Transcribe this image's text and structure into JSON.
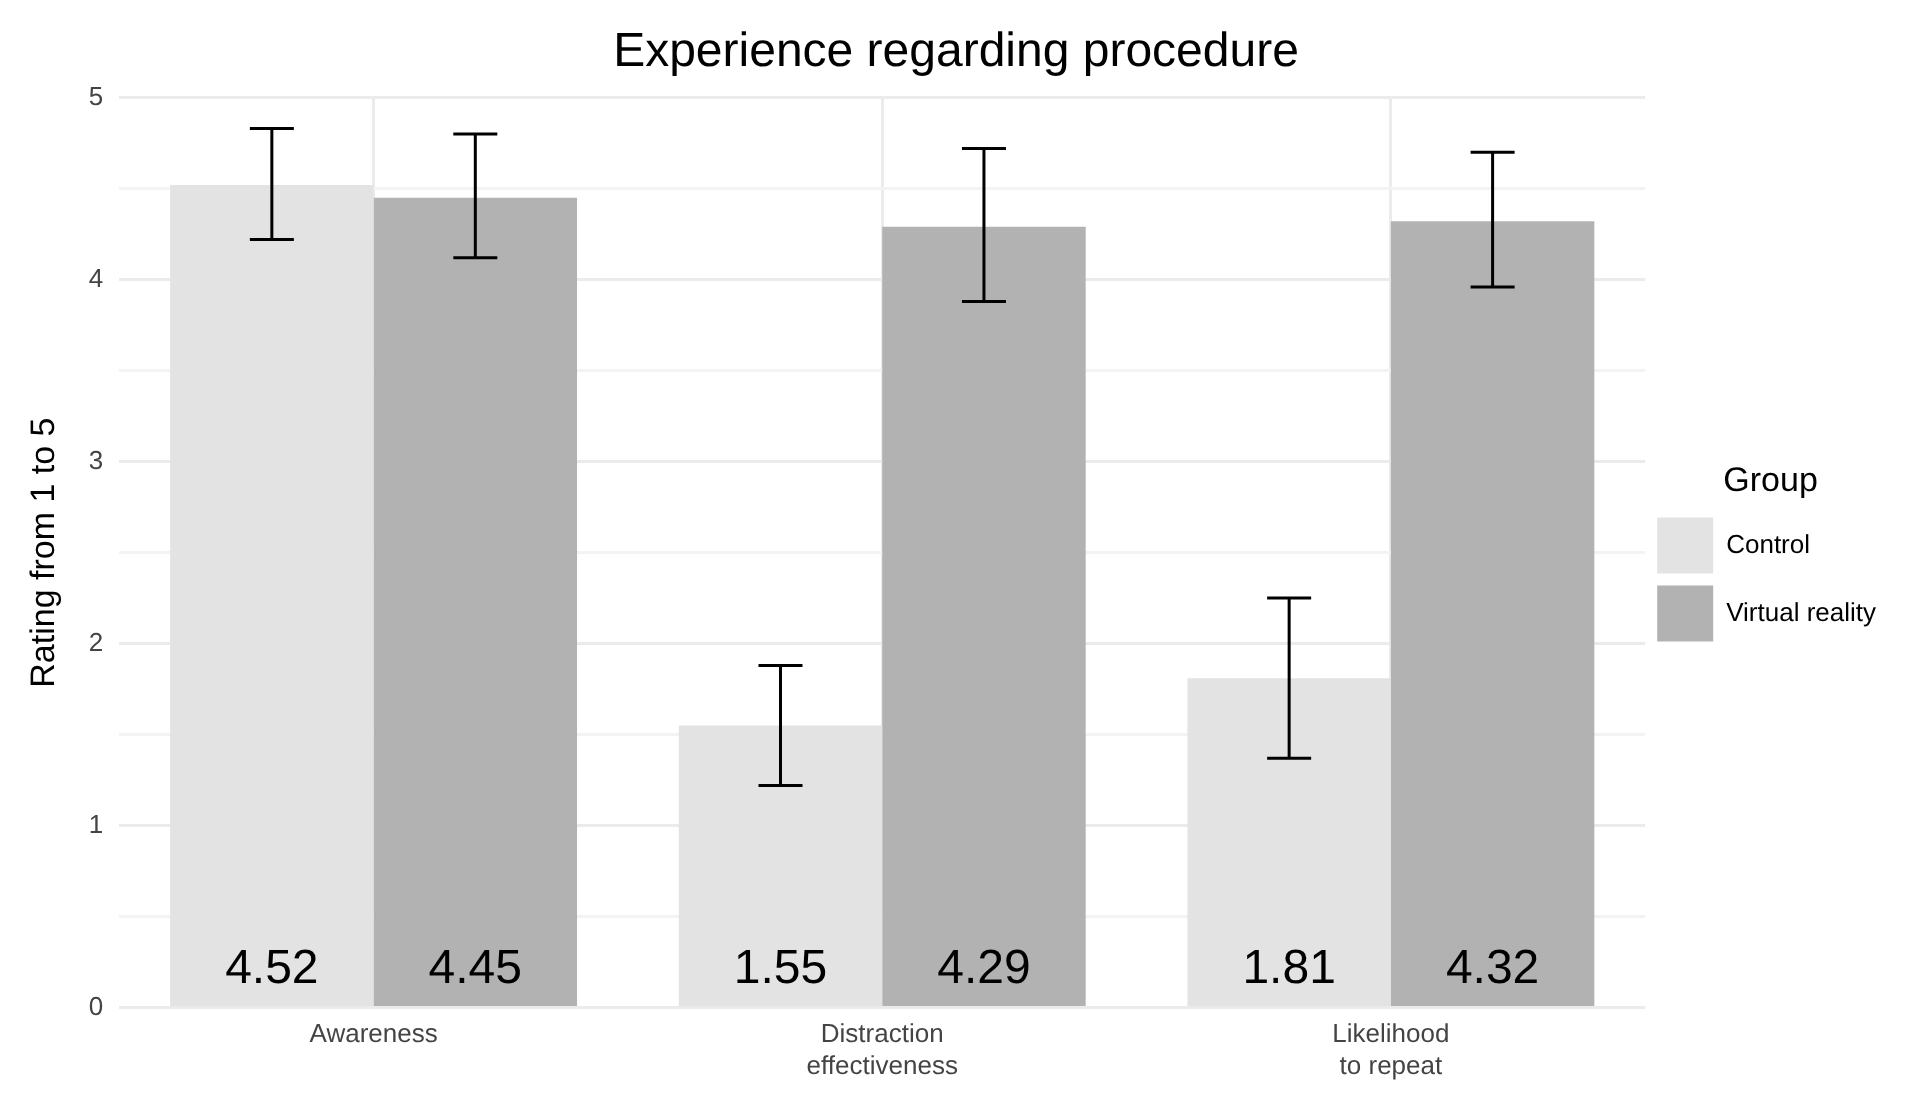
{
  "chart_data": {
    "type": "bar",
    "title": "Experience regarding procedure",
    "ylabel": "Rating from 1 to 5",
    "legend_title": "Group",
    "categories": [
      "Awareness",
      "Distraction\neffectiveness",
      "Likelihood\nto repeat"
    ],
    "series": [
      {
        "name": "Control",
        "color": "#e3e3e3",
        "values": [
          4.52,
          1.55,
          1.81
        ],
        "errors": [
          [
            4.22,
            4.83
          ],
          [
            1.22,
            1.88
          ],
          [
            1.37,
            2.25
          ]
        ]
      },
      {
        "name": "Virtual reality",
        "color": "#b2b2b2",
        "values": [
          4.45,
          4.29,
          4.32
        ],
        "errors": [
          [
            4.12,
            4.8
          ],
          [
            3.88,
            4.72
          ],
          [
            3.96,
            4.7
          ]
        ]
      }
    ],
    "ylim": [
      0,
      5
    ],
    "yticks": [
      0,
      {
        "value": 0.5,
        "label": null
      },
      1,
      {
        "value": 1.5,
        "label": null
      },
      2,
      {
        "value": 2.5,
        "label": null
      },
      3,
      {
        "value": 3.5,
        "label": null
      },
      4,
      {
        "value": 4.5,
        "label": null
      },
      5
    ],
    "grid": true,
    "legend": "right",
    "data_labels": true
  }
}
